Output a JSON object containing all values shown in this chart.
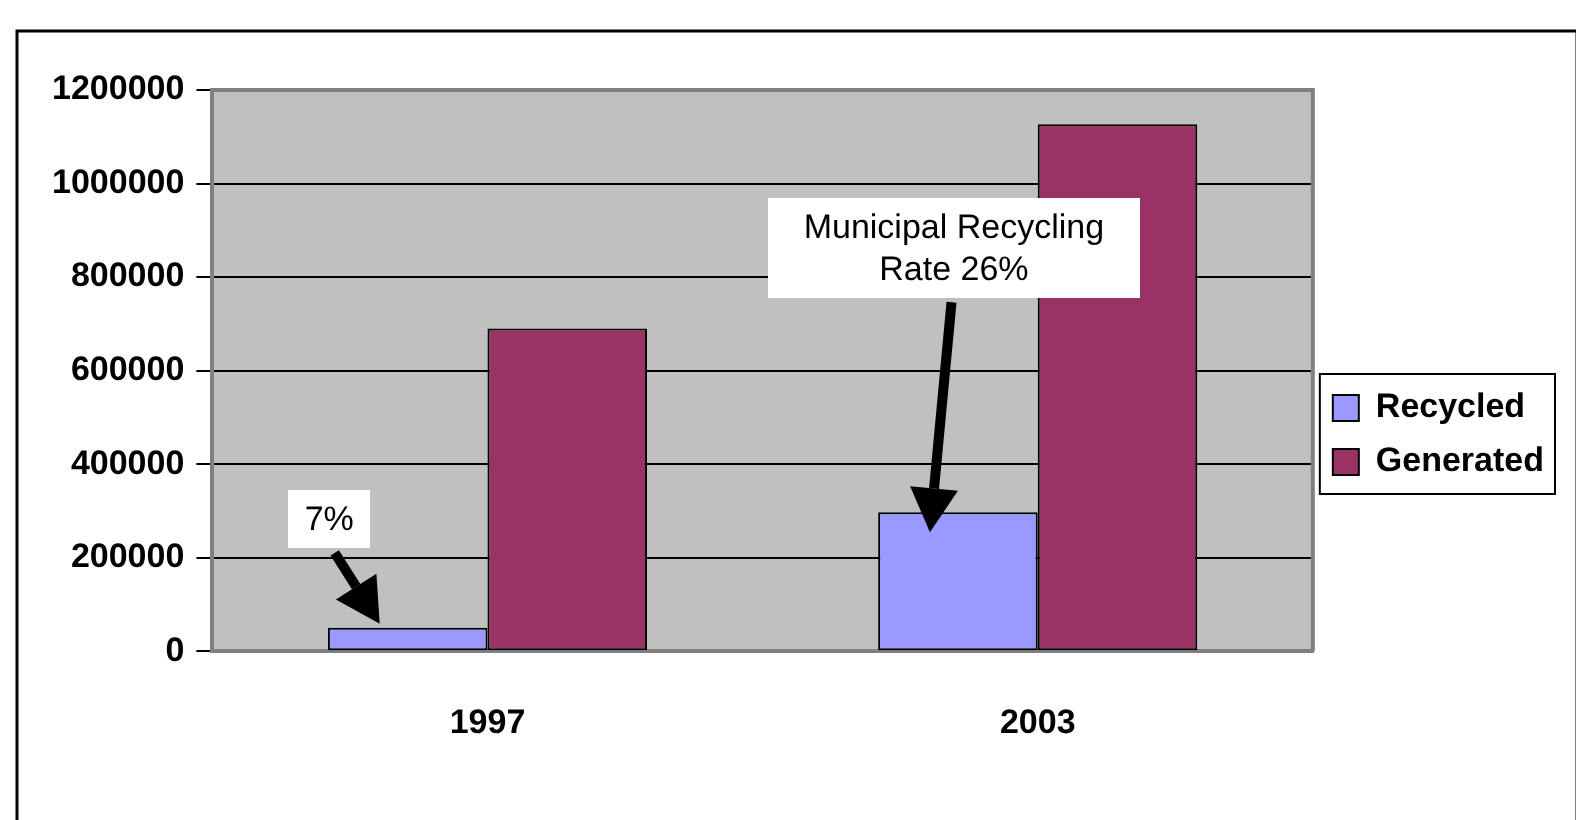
{
  "chart_data": {
    "type": "bar",
    "categories": [
      "1997",
      "2003"
    ],
    "series": [
      {
        "name": "Recycled",
        "color": "#9999ff",
        "values": [
          50000,
          297000
        ]
      },
      {
        "name": "Generated",
        "color": "#993366",
        "values": [
          690000,
          1127000
        ]
      }
    ],
    "ylim": [
      0,
      1200000
    ],
    "yticks": [
      0,
      200000,
      400000,
      600000,
      800000,
      1000000,
      1200000
    ],
    "grid": "y",
    "legend": "right",
    "annotations": [
      "7%",
      "Municipal Recycling Rate 26%"
    ]
  }
}
